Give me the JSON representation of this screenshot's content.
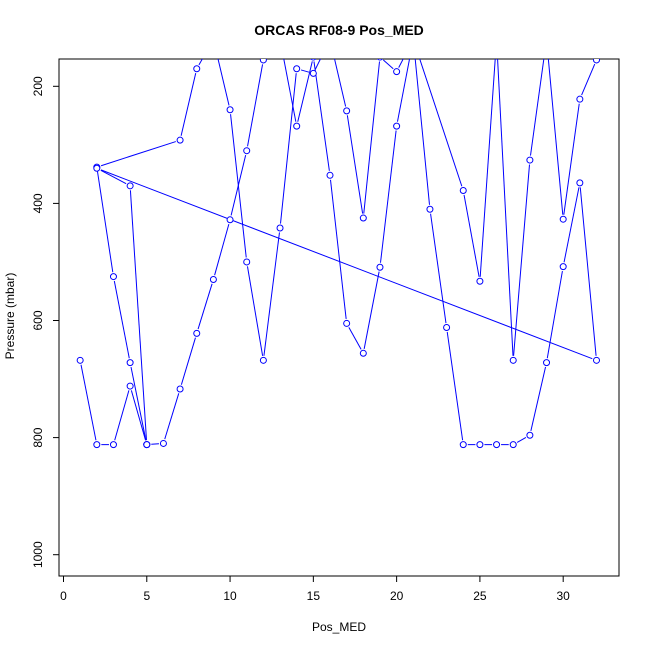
{
  "chart_data": {
    "type": "line",
    "title": "ORCAS RF08-9 Pos_MED",
    "xlabel": "Pos_MED",
    "ylabel": "Pressure (mbar)",
    "xlim": [
      0,
      33
    ],
    "ylim": [
      1040,
      155
    ],
    "y_reversed": true,
    "x_ticks": [
      0,
      5,
      10,
      15,
      20,
      25,
      30
    ],
    "y_ticks": [
      200,
      400,
      600,
      800,
      1000
    ],
    "grid": false,
    "series": [
      {
        "color": "#0000ff",
        "x": [
          1,
          2,
          3,
          4,
          5,
          5,
          4,
          3,
          2,
          7,
          8,
          9,
          10,
          11,
          12,
          13,
          14,
          15,
          16,
          17,
          18,
          19,
          20,
          21,
          22,
          23,
          24,
          25,
          26,
          27,
          28,
          29,
          30,
          31,
          32,
          2,
          4,
          5,
          6,
          7,
          8,
          9,
          10,
          11,
          12,
          13,
          14,
          15,
          16,
          17,
          18,
          19,
          20,
          21,
          24,
          25,
          26,
          27,
          28,
          29,
          30,
          31,
          32
        ],
        "y": [
          668,
          812,
          812,
          712,
          812,
          812,
          672,
          525,
          338,
          292,
          170,
          120,
          240,
          500,
          668,
          442,
          170,
          178,
          120,
          242,
          425,
          150,
          175,
          120,
          410,
          612,
          812,
          812,
          812,
          812,
          796,
          672,
          508,
          365,
          668,
          340,
          370,
          812,
          810,
          717,
          622,
          530,
          428,
          310,
          155,
          120,
          268,
          150,
          352,
          605,
          656,
          509,
          268,
          120,
          378,
          533,
          120,
          668,
          326,
          120,
          427,
          222,
          155
        ]
      }
    ]
  }
}
